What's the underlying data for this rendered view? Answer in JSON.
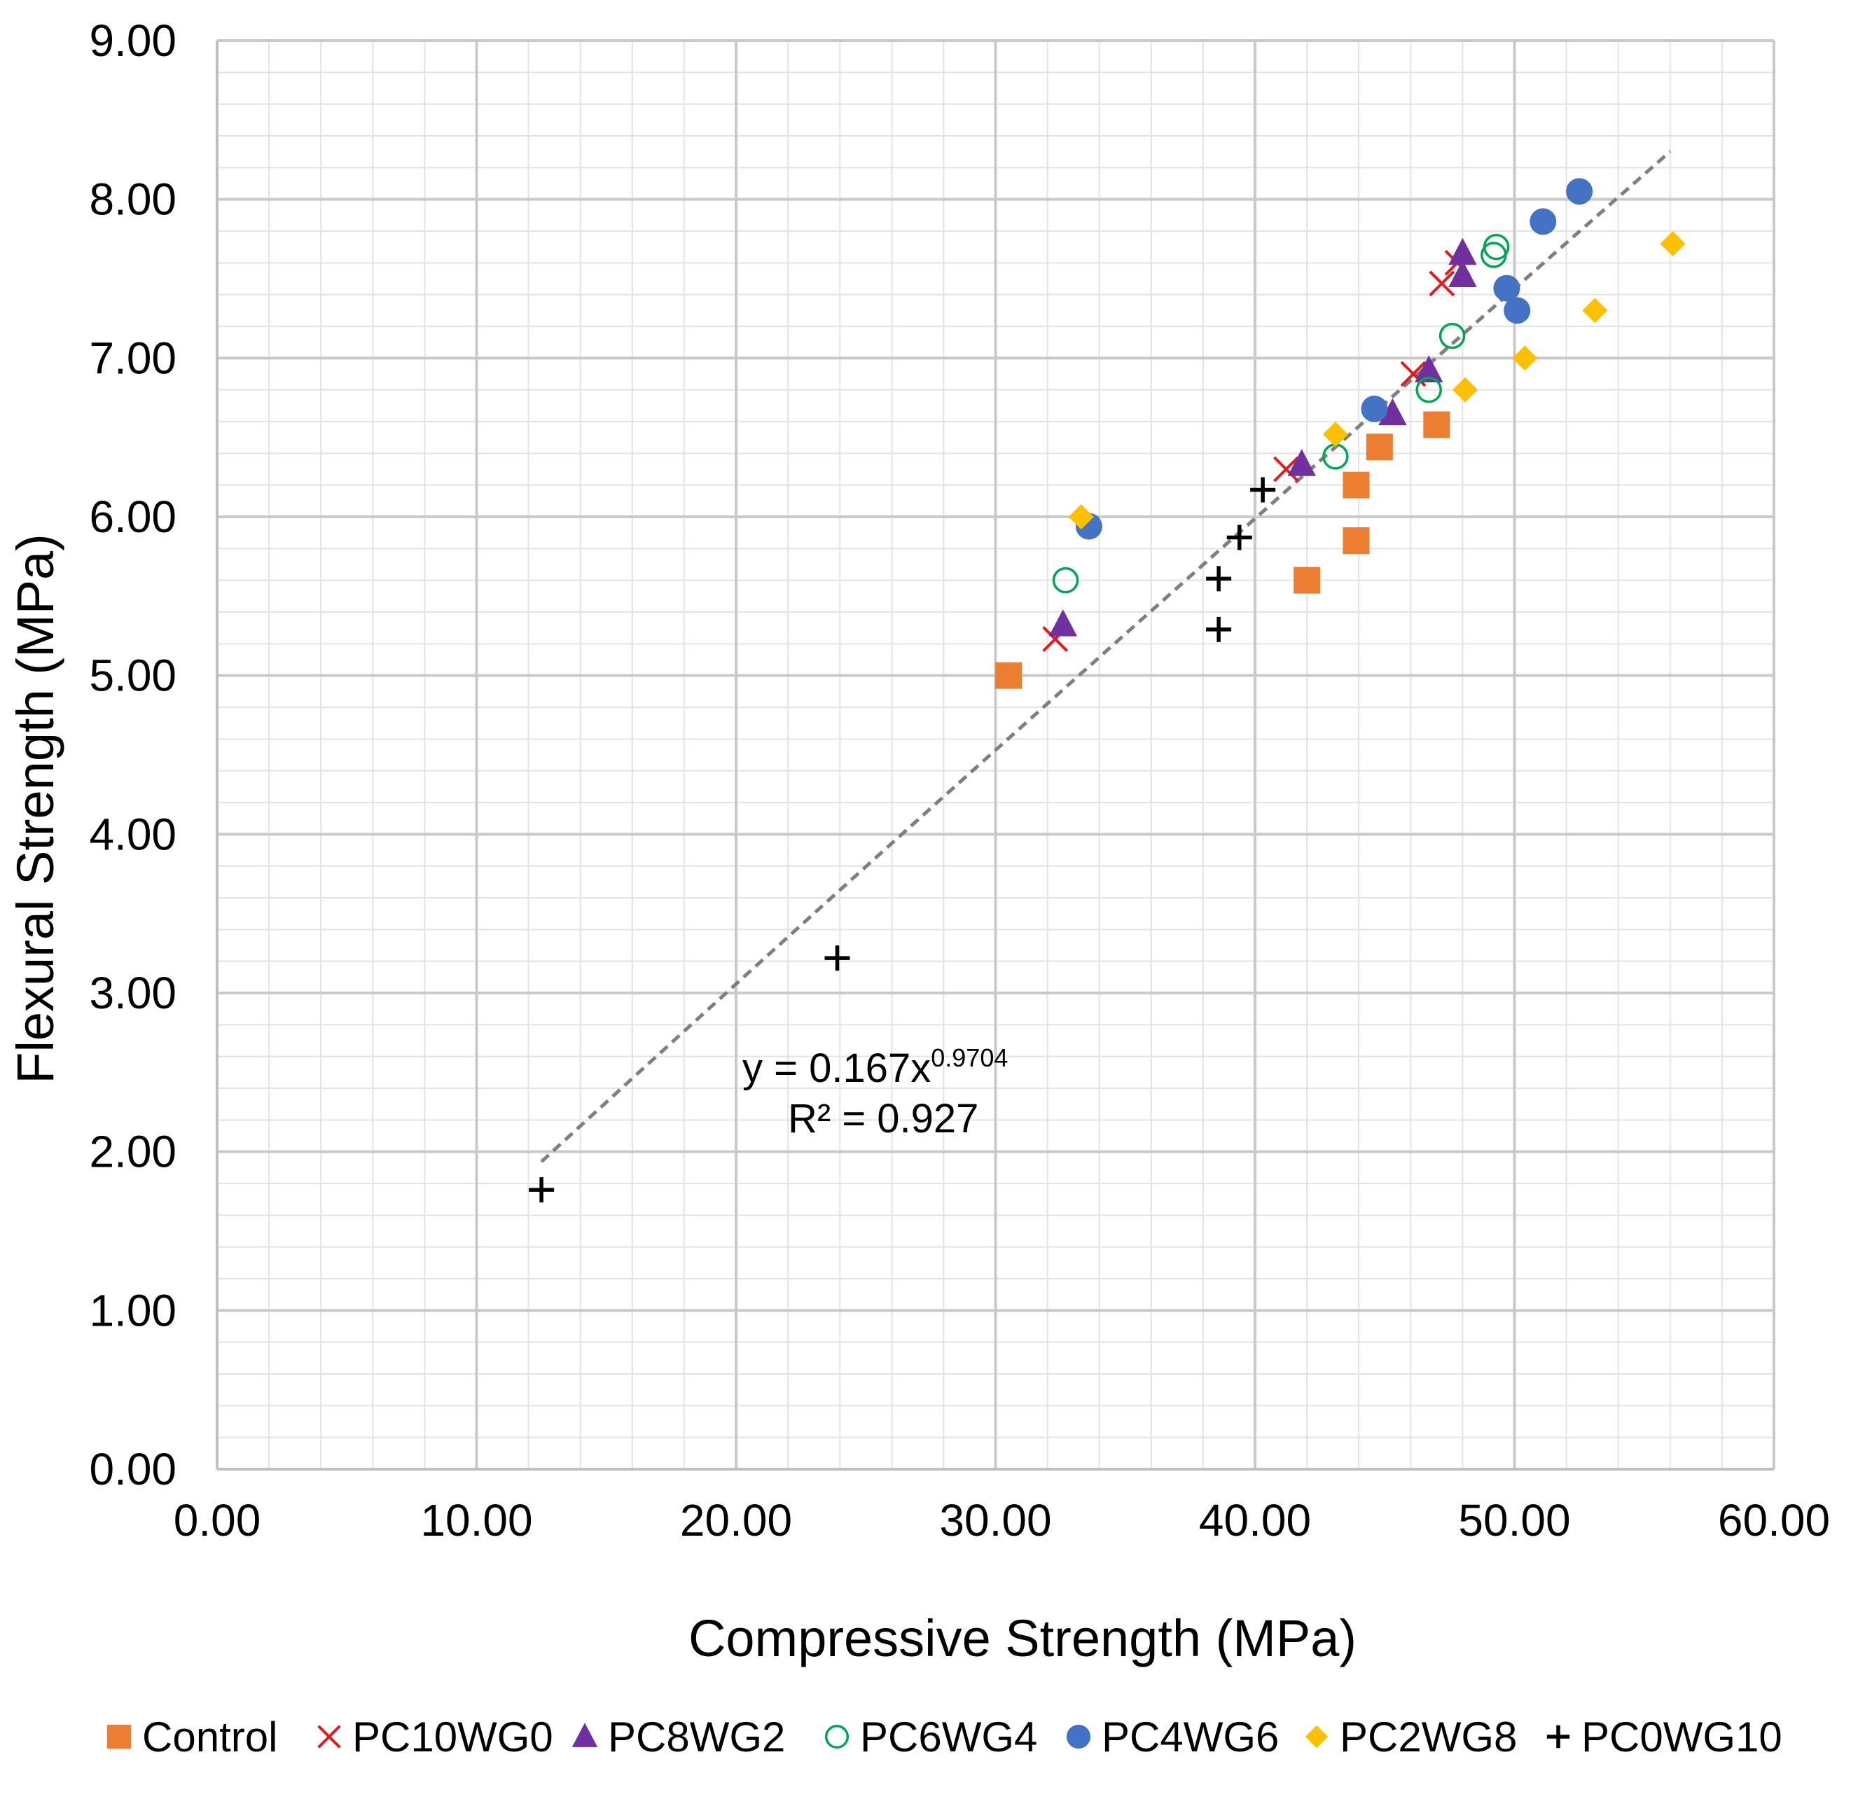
{
  "chart_data": {
    "type": "scatter",
    "title": "",
    "xlabel": "Compressive Strength (MPa)",
    "ylabel": "Flexural Strength (MPa)",
    "xlim": [
      0,
      60
    ],
    "ylim": [
      0,
      9
    ],
    "x_major_step": 10,
    "x_minor_step": 2,
    "y_major_step": 1,
    "y_minor_step": 0.2,
    "xtick_labels": [
      "0.00",
      "10.00",
      "20.00",
      "30.00",
      "40.00",
      "50.00",
      "60.00"
    ],
    "ytick_labels": [
      "0.00",
      "1.00",
      "2.00",
      "3.00",
      "4.00",
      "5.00",
      "6.00",
      "7.00",
      "8.00",
      "9.00"
    ],
    "grid": true,
    "legend_position": "bottom",
    "series": [
      {
        "name": "Control",
        "marker": "square",
        "color": "#ED7D31",
        "points": [
          [
            30.5,
            5.0
          ],
          [
            42.0,
            5.6
          ],
          [
            43.9,
            5.85
          ],
          [
            43.9,
            6.2
          ],
          [
            44.8,
            6.44
          ],
          [
            47.0,
            6.58
          ]
        ]
      },
      {
        "name": "PC10WG0",
        "marker": "x",
        "color": "#E31A1C",
        "points": [
          [
            32.3,
            5.23
          ],
          [
            41.2,
            6.3
          ],
          [
            46.1,
            6.9
          ],
          [
            47.2,
            7.47
          ],
          [
            47.8,
            7.6
          ]
        ]
      },
      {
        "name": "PC8WG2",
        "marker": "triangle",
        "color": "#7030A0",
        "points": [
          [
            32.6,
            5.32
          ],
          [
            41.8,
            6.33
          ],
          [
            45.3,
            6.65
          ],
          [
            46.7,
            6.92
          ],
          [
            48.0,
            7.52
          ],
          [
            48.0,
            7.66
          ]
        ]
      },
      {
        "name": "PC6WG4",
        "marker": "circle-open",
        "color": "#00A651",
        "points": [
          [
            32.7,
            5.6
          ],
          [
            43.1,
            6.38
          ],
          [
            46.7,
            6.8
          ],
          [
            47.6,
            7.14
          ],
          [
            49.2,
            7.65
          ],
          [
            49.3,
            7.7
          ]
        ]
      },
      {
        "name": "PC4WG6",
        "marker": "circle",
        "color": "#4472C4",
        "points": [
          [
            33.6,
            5.94
          ],
          [
            44.6,
            6.68
          ],
          [
            49.7,
            7.44
          ],
          [
            50.1,
            7.3
          ],
          [
            51.1,
            7.86
          ],
          [
            52.5,
            8.05
          ]
        ]
      },
      {
        "name": "PC2WG8",
        "marker": "diamond",
        "color": "#FFC000",
        "points": [
          [
            33.3,
            6.0
          ],
          [
            43.1,
            6.52
          ],
          [
            48.1,
            6.8
          ],
          [
            50.4,
            7.0
          ],
          [
            53.1,
            7.3
          ],
          [
            56.1,
            7.72
          ]
        ]
      },
      {
        "name": "PC0WG10",
        "marker": "plus",
        "color": "#000000",
        "points": [
          [
            12.5,
            1.76
          ],
          [
            23.9,
            3.22
          ],
          [
            38.6,
            5.29
          ],
          [
            38.6,
            5.61
          ],
          [
            39.4,
            5.87
          ],
          [
            40.3,
            6.17
          ]
        ]
      }
    ],
    "trendline": {
      "type": "power",
      "a": 0.167,
      "b": 0.9704,
      "x_range": [
        12.5,
        56.0
      ],
      "color": "#7F7F7F",
      "equation_prefix": "y = 0.167x",
      "equation_exponent": "0.9704",
      "r_squared_label": "R² = 0.927"
    }
  }
}
